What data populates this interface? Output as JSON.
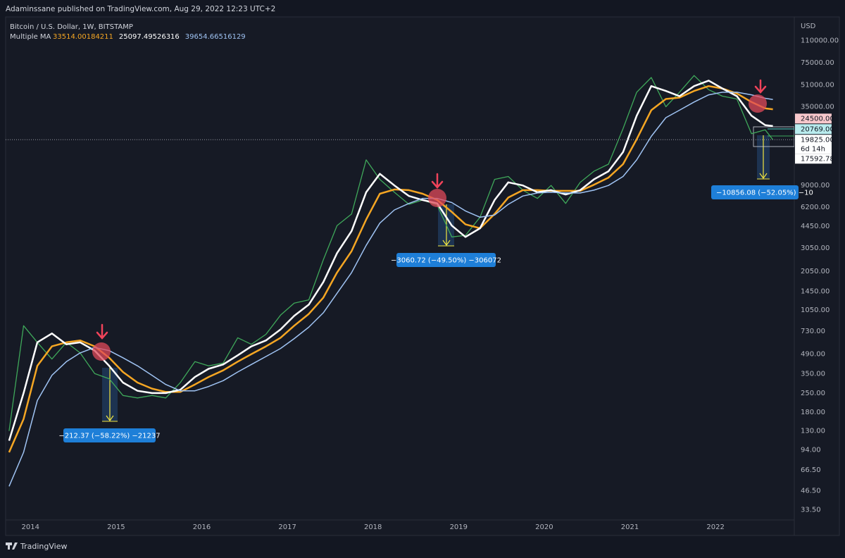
{
  "header": "Adaminssane published on TradingView.com, Aug 29, 2022 12:23 UTC+2",
  "footer": "TradingView",
  "chart_data": {
    "type": "line",
    "log_scale": true,
    "grid": false,
    "y_label": "USD",
    "ma_title": "Multiple MA",
    "xlim": [
      2013.71,
      2022.92
    ],
    "xticks": [
      2014,
      2015,
      2016,
      2017,
      2018,
      2019,
      2020,
      2021,
      2022
    ],
    "ylim": [
      28,
      165000
    ],
    "yticks": [
      {
        "value": 110000,
        "label": "110000.00"
      },
      {
        "value": 75000,
        "label": "75000.00"
      },
      {
        "value": 51000,
        "label": "51000.00"
      },
      {
        "value": 35000,
        "label": "35000.00"
      },
      {
        "value": 9000,
        "label": "9000.00"
      },
      {
        "value": 6200,
        "label": "6200.00"
      },
      {
        "value": 4450,
        "label": "4450.00"
      },
      {
        "value": 3050,
        "label": "3050.00"
      },
      {
        "value": 2050,
        "label": "2050.00"
      },
      {
        "value": 1450,
        "label": "1450.00"
      },
      {
        "value": 1050,
        "label": "1050.00"
      },
      {
        "value": 730,
        "label": "730.00"
      },
      {
        "value": 490,
        "label": "490.00"
      },
      {
        "value": 350,
        "label": "350.00"
      },
      {
        "value": 250,
        "label": "250.00"
      },
      {
        "value": 180,
        "label": "180.00"
      },
      {
        "value": 130,
        "label": "130.00"
      },
      {
        "value": 94,
        "label": "94.00"
      },
      {
        "value": 66.5,
        "label": "66.50"
      },
      {
        "value": 46.5,
        "label": "46.50"
      },
      {
        "value": 33.5,
        "label": "33.50"
      }
    ],
    "price_tags": [
      {
        "value": 24500,
        "label": "24500.00",
        "color": "#f8c8cc"
      },
      {
        "value": 20769,
        "label": "20769.00",
        "color": "#b9ecee"
      },
      {
        "value": 19825,
        "label": "19825.00",
        "countdown": "6d 14h",
        "color": "#ffffff"
      },
      {
        "value": 17592.78,
        "label": "17592.78",
        "color": "#ffffff"
      }
    ],
    "x": [
      2013.75,
      2013.92,
      2014.08,
      2014.25,
      2014.42,
      2014.58,
      2014.75,
      2014.92,
      2015.08,
      2015.25,
      2015.42,
      2015.58,
      2015.75,
      2015.92,
      2016.08,
      2016.25,
      2016.42,
      2016.58,
      2016.75,
      2016.92,
      2017.08,
      2017.25,
      2017.42,
      2017.58,
      2017.75,
      2017.92,
      2018.08,
      2018.25,
      2018.42,
      2018.58,
      2018.75,
      2018.92,
      2019.08,
      2019.25,
      2019.42,
      2019.58,
      2019.75,
      2019.92,
      2020.08,
      2020.25,
      2020.42,
      2020.58,
      2020.75,
      2020.92,
      2021.08,
      2021.25,
      2021.42,
      2021.58,
      2021.75,
      2021.92,
      2022.08,
      2022.25,
      2022.42,
      2022.58,
      2022.67
    ],
    "series": [
      {
        "name": "Bitcoin / U.S. Dollar, 1W, BITSTAMP",
        "color": "#3fa85a",
        "values": [
          130,
          800,
          600,
          450,
          600,
          500,
          350,
          320,
          240,
          230,
          240,
          230,
          300,
          430,
          400,
          420,
          650,
          580,
          690,
          960,
          1180,
          1250,
          2500,
          4500,
          5500,
          14000,
          10000,
          8000,
          6500,
          7000,
          6400,
          3700,
          3800,
          5200,
          10000,
          10500,
          8300,
          7200,
          9000,
          6600,
          9500,
          11500,
          13000,
          24000,
          45000,
          58000,
          35000,
          45000,
          60000,
          47000,
          42000,
          40000,
          22000,
          23500,
          19825
        ]
      },
      {
        "color": "#f5a623",
        "width": 2.5,
        "values": [
          90,
          160,
          400,
          560,
          600,
          620,
          560,
          460,
          360,
          300,
          270,
          255,
          255,
          290,
          330,
          370,
          430,
          490,
          560,
          650,
          800,
          980,
          1300,
          2000,
          2900,
          5000,
          7800,
          8400,
          8300,
          7800,
          7000,
          5700,
          4600,
          4300,
          5500,
          7300,
          8300,
          8300,
          8200,
          8200,
          8200,
          9100,
          10300,
          13000,
          20000,
          33000,
          40000,
          41000,
          46000,
          50000,
          48000,
          44000,
          38000,
          34000,
          33514.00184211
        ]
      },
      {
        "color": "#ffffff",
        "width": 2.5,
        "values": [
          110,
          250,
          600,
          700,
          580,
          600,
          520,
          400,
          300,
          260,
          250,
          250,
          265,
          330,
          380,
          410,
          480,
          560,
          620,
          750,
          950,
          1150,
          1700,
          2800,
          4100,
          8000,
          11000,
          9000,
          7500,
          7000,
          6600,
          4500,
          3700,
          4300,
          7000,
          9500,
          9000,
          8000,
          8300,
          7700,
          8300,
          10000,
          11500,
          16000,
          30000,
          50000,
          46000,
          42000,
          50000,
          55000,
          48000,
          42000,
          30000,
          25500,
          25097.49526316
        ]
      },
      {
        "color": "#9fc3f3",
        "width": 1.5,
        "values": [
          50,
          90,
          220,
          340,
          430,
          500,
          550,
          520,
          460,
          400,
          340,
          290,
          260,
          260,
          280,
          310,
          360,
          410,
          470,
          540,
          640,
          780,
          1000,
          1400,
          2000,
          3200,
          4700,
          5900,
          6600,
          7200,
          7200,
          6700,
          5800,
          5200,
          5400,
          6500,
          7500,
          7900,
          8000,
          7900,
          7900,
          8300,
          9000,
          10500,
          14000,
          21000,
          29000,
          33000,
          38000,
          43000,
          45000,
          45000,
          43000,
          40500,
          39654.66516129
        ]
      }
    ],
    "annotations": [
      {
        "text": "−212.37 (−58.22%) −21237"
      },
      {
        "text": "−3060.72 (−49.50%) −306072"
      },
      {
        "text": "−10856.08 (−52.05%) −10"
      }
    ]
  }
}
